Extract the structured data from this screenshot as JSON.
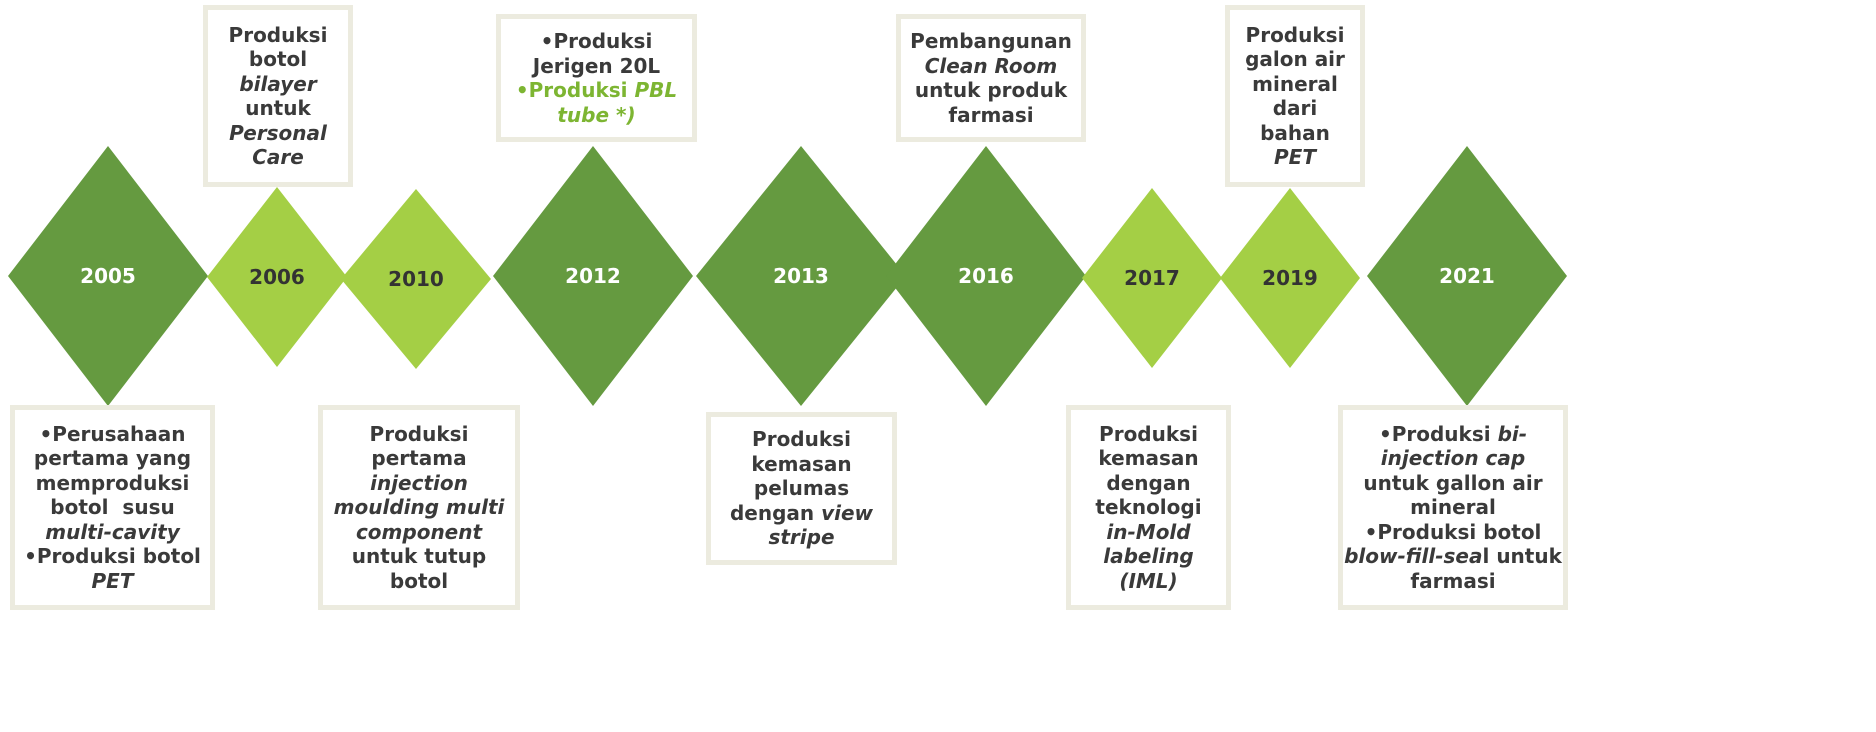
{
  "events": [
    {
      "year": "2005",
      "color": "#659a40",
      "position": "bottom",
      "lines": [
        [
          {
            "text": "•Perusahaan"
          }
        ],
        [
          {
            "text": "pertama yang"
          }
        ],
        [
          {
            "text": "memproduksi"
          }
        ],
        [
          {
            "text": "botol  susu"
          }
        ],
        [
          {
            "text": "multi-cavity",
            "italic": true
          }
        ],
        [
          {
            "text": "•Produksi botol"
          }
        ],
        [
          {
            "text": "PET",
            "italic": true
          }
        ]
      ]
    },
    {
      "year": "2006",
      "color": "#a4cf45",
      "position": "top",
      "lines": [
        [
          {
            "text": "Produksi"
          }
        ],
        [
          {
            "text": "botol"
          }
        ],
        [
          {
            "text": "bilayer",
            "italic": true
          }
        ],
        [
          {
            "text": "untuk"
          }
        ],
        [
          {
            "text": "Personal",
            "italic": true
          }
        ],
        [
          {
            "text": "Care",
            "italic": true
          }
        ]
      ]
    },
    {
      "year": "2010",
      "color": "#a4cf45",
      "position": "bottom",
      "lines": [
        [
          {
            "text": "Produksi"
          }
        ],
        [
          {
            "text": "pertama"
          }
        ],
        [
          {
            "text": "injection",
            "italic": true
          }
        ],
        [
          {
            "text": "moulding multi",
            "italic": true
          }
        ],
        [
          {
            "text": "component",
            "italic": true
          }
        ],
        [
          {
            "text": "untuk tutup"
          }
        ],
        [
          {
            "text": "botol"
          }
        ]
      ]
    },
    {
      "year": "2012",
      "color": "#659a40",
      "position": "top",
      "lines": [
        [
          {
            "text": "•Produksi"
          }
        ],
        [
          {
            "text": "Jerigen 20L"
          }
        ],
        [
          {
            "text": "•Produksi ",
            "color": "#7db532"
          },
          {
            "text": "PBL",
            "italic": true,
            "color": "#7db532"
          }
        ],
        [
          {
            "text": "tube *)",
            "italic": true,
            "color": "#7db532"
          }
        ]
      ]
    },
    {
      "year": "2013",
      "color": "#659a40",
      "position": "bottom",
      "lines": [
        [
          {
            "text": "Produksi"
          }
        ],
        [
          {
            "text": "kemasan"
          }
        ],
        [
          {
            "text": "pelumas"
          }
        ],
        [
          {
            "text": "dengan "
          },
          {
            "text": "view",
            "italic": true
          }
        ],
        [
          {
            "text": "stripe",
            "italic": true
          }
        ]
      ]
    },
    {
      "year": "2016",
      "color": "#659a40",
      "position": "top",
      "lines": [
        [
          {
            "text": "Pembangunan"
          }
        ],
        [
          {
            "text": "Clean Room",
            "italic": true
          }
        ],
        [
          {
            "text": "untuk produk"
          }
        ],
        [
          {
            "text": "farmasi"
          }
        ]
      ]
    },
    {
      "year": "2017",
      "color": "#a4cf45",
      "position": "bottom",
      "lines": [
        [
          {
            "text": "Produksi"
          }
        ],
        [
          {
            "text": "kemasan"
          }
        ],
        [
          {
            "text": "dengan"
          }
        ],
        [
          {
            "text": "teknologi"
          }
        ],
        [
          {
            "text": "in-Mold",
            "italic": true
          }
        ],
        [
          {
            "text": "labeling",
            "italic": true
          }
        ],
        [
          {
            "text": "(IML)",
            "italic": true
          }
        ]
      ]
    },
    {
      "year": "2019",
      "color": "#a4cf45",
      "position": "top",
      "lines": [
        [
          {
            "text": "Produksi"
          }
        ],
        [
          {
            "text": "galon air"
          }
        ],
        [
          {
            "text": "mineral"
          }
        ],
        [
          {
            "text": "dari"
          }
        ],
        [
          {
            "text": "bahan"
          }
        ],
        [
          {
            "text": "PET",
            "italic": true
          }
        ]
      ]
    },
    {
      "year": "2021",
      "color": "#659a40",
      "position": "bottom",
      "lines": [
        [
          {
            "text": "•Produksi "
          },
          {
            "text": "bi-",
            "italic": true
          }
        ],
        [
          {
            "text": "injection cap",
            "italic": true
          }
        ],
        [
          {
            "text": "untuk gallon air"
          }
        ],
        [
          {
            "text": "mineral"
          }
        ],
        [
          {
            "text": "•Produksi botol"
          }
        ],
        [
          {
            "text": "blow-fill-sea",
            "italic": true
          },
          {
            "text": "l untuk"
          }
        ],
        [
          {
            "text": "farmasi"
          }
        ]
      ]
    }
  ]
}
